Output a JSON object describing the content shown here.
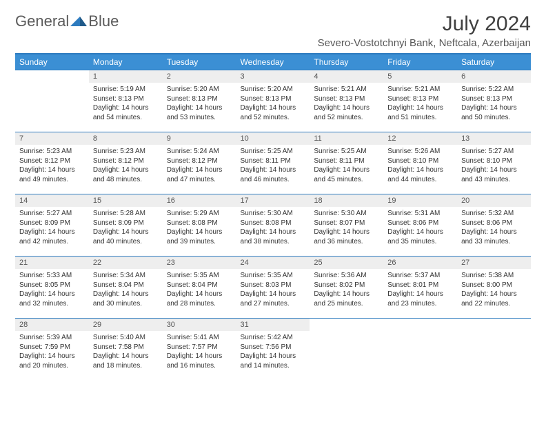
{
  "logo": {
    "word1": "General",
    "word2": "Blue"
  },
  "title": "July 2024",
  "location": "Severo-Vostotchnyi Bank, Neftcala, Azerbaijan",
  "colors": {
    "header_bg": "#3b8fd4",
    "header_border": "#2d7bbf",
    "daynum_bg": "#eeeeee",
    "text": "#333333",
    "logo_blue": "#2d7bbf"
  },
  "fonts": {
    "title_size": 30,
    "location_size": 15,
    "header_size": 12,
    "daynum_size": 11,
    "body_size": 10
  },
  "day_labels": [
    "Sunday",
    "Monday",
    "Tuesday",
    "Wednesday",
    "Thursday",
    "Friday",
    "Saturday"
  ],
  "weeks": [
    [
      {
        "n": "",
        "sunrise": "",
        "sunset": "",
        "daylight": "",
        "empty": true
      },
      {
        "n": "1",
        "sunrise": "Sunrise: 5:19 AM",
        "sunset": "Sunset: 8:13 PM",
        "daylight": "Daylight: 14 hours and 54 minutes."
      },
      {
        "n": "2",
        "sunrise": "Sunrise: 5:20 AM",
        "sunset": "Sunset: 8:13 PM",
        "daylight": "Daylight: 14 hours and 53 minutes."
      },
      {
        "n": "3",
        "sunrise": "Sunrise: 5:20 AM",
        "sunset": "Sunset: 8:13 PM",
        "daylight": "Daylight: 14 hours and 52 minutes."
      },
      {
        "n": "4",
        "sunrise": "Sunrise: 5:21 AM",
        "sunset": "Sunset: 8:13 PM",
        "daylight": "Daylight: 14 hours and 52 minutes."
      },
      {
        "n": "5",
        "sunrise": "Sunrise: 5:21 AM",
        "sunset": "Sunset: 8:13 PM",
        "daylight": "Daylight: 14 hours and 51 minutes."
      },
      {
        "n": "6",
        "sunrise": "Sunrise: 5:22 AM",
        "sunset": "Sunset: 8:13 PM",
        "daylight": "Daylight: 14 hours and 50 minutes."
      }
    ],
    [
      {
        "n": "7",
        "sunrise": "Sunrise: 5:23 AM",
        "sunset": "Sunset: 8:12 PM",
        "daylight": "Daylight: 14 hours and 49 minutes."
      },
      {
        "n": "8",
        "sunrise": "Sunrise: 5:23 AM",
        "sunset": "Sunset: 8:12 PM",
        "daylight": "Daylight: 14 hours and 48 minutes."
      },
      {
        "n": "9",
        "sunrise": "Sunrise: 5:24 AM",
        "sunset": "Sunset: 8:12 PM",
        "daylight": "Daylight: 14 hours and 47 minutes."
      },
      {
        "n": "10",
        "sunrise": "Sunrise: 5:25 AM",
        "sunset": "Sunset: 8:11 PM",
        "daylight": "Daylight: 14 hours and 46 minutes."
      },
      {
        "n": "11",
        "sunrise": "Sunrise: 5:25 AM",
        "sunset": "Sunset: 8:11 PM",
        "daylight": "Daylight: 14 hours and 45 minutes."
      },
      {
        "n": "12",
        "sunrise": "Sunrise: 5:26 AM",
        "sunset": "Sunset: 8:10 PM",
        "daylight": "Daylight: 14 hours and 44 minutes."
      },
      {
        "n": "13",
        "sunrise": "Sunrise: 5:27 AM",
        "sunset": "Sunset: 8:10 PM",
        "daylight": "Daylight: 14 hours and 43 minutes."
      }
    ],
    [
      {
        "n": "14",
        "sunrise": "Sunrise: 5:27 AM",
        "sunset": "Sunset: 8:09 PM",
        "daylight": "Daylight: 14 hours and 42 minutes."
      },
      {
        "n": "15",
        "sunrise": "Sunrise: 5:28 AM",
        "sunset": "Sunset: 8:09 PM",
        "daylight": "Daylight: 14 hours and 40 minutes."
      },
      {
        "n": "16",
        "sunrise": "Sunrise: 5:29 AM",
        "sunset": "Sunset: 8:08 PM",
        "daylight": "Daylight: 14 hours and 39 minutes."
      },
      {
        "n": "17",
        "sunrise": "Sunrise: 5:30 AM",
        "sunset": "Sunset: 8:08 PM",
        "daylight": "Daylight: 14 hours and 38 minutes."
      },
      {
        "n": "18",
        "sunrise": "Sunrise: 5:30 AM",
        "sunset": "Sunset: 8:07 PM",
        "daylight": "Daylight: 14 hours and 36 minutes."
      },
      {
        "n": "19",
        "sunrise": "Sunrise: 5:31 AM",
        "sunset": "Sunset: 8:06 PM",
        "daylight": "Daylight: 14 hours and 35 minutes."
      },
      {
        "n": "20",
        "sunrise": "Sunrise: 5:32 AM",
        "sunset": "Sunset: 8:06 PM",
        "daylight": "Daylight: 14 hours and 33 minutes."
      }
    ],
    [
      {
        "n": "21",
        "sunrise": "Sunrise: 5:33 AM",
        "sunset": "Sunset: 8:05 PM",
        "daylight": "Daylight: 14 hours and 32 minutes."
      },
      {
        "n": "22",
        "sunrise": "Sunrise: 5:34 AM",
        "sunset": "Sunset: 8:04 PM",
        "daylight": "Daylight: 14 hours and 30 minutes."
      },
      {
        "n": "23",
        "sunrise": "Sunrise: 5:35 AM",
        "sunset": "Sunset: 8:04 PM",
        "daylight": "Daylight: 14 hours and 28 minutes."
      },
      {
        "n": "24",
        "sunrise": "Sunrise: 5:35 AM",
        "sunset": "Sunset: 8:03 PM",
        "daylight": "Daylight: 14 hours and 27 minutes."
      },
      {
        "n": "25",
        "sunrise": "Sunrise: 5:36 AM",
        "sunset": "Sunset: 8:02 PM",
        "daylight": "Daylight: 14 hours and 25 minutes."
      },
      {
        "n": "26",
        "sunrise": "Sunrise: 5:37 AM",
        "sunset": "Sunset: 8:01 PM",
        "daylight": "Daylight: 14 hours and 23 minutes."
      },
      {
        "n": "27",
        "sunrise": "Sunrise: 5:38 AM",
        "sunset": "Sunset: 8:00 PM",
        "daylight": "Daylight: 14 hours and 22 minutes."
      }
    ],
    [
      {
        "n": "28",
        "sunrise": "Sunrise: 5:39 AM",
        "sunset": "Sunset: 7:59 PM",
        "daylight": "Daylight: 14 hours and 20 minutes."
      },
      {
        "n": "29",
        "sunrise": "Sunrise: 5:40 AM",
        "sunset": "Sunset: 7:58 PM",
        "daylight": "Daylight: 14 hours and 18 minutes."
      },
      {
        "n": "30",
        "sunrise": "Sunrise: 5:41 AM",
        "sunset": "Sunset: 7:57 PM",
        "daylight": "Daylight: 14 hours and 16 minutes."
      },
      {
        "n": "31",
        "sunrise": "Sunrise: 5:42 AM",
        "sunset": "Sunset: 7:56 PM",
        "daylight": "Daylight: 14 hours and 14 minutes."
      },
      {
        "n": "",
        "sunrise": "",
        "sunset": "",
        "daylight": "",
        "empty": true
      },
      {
        "n": "",
        "sunrise": "",
        "sunset": "",
        "daylight": "",
        "empty": true
      },
      {
        "n": "",
        "sunrise": "",
        "sunset": "",
        "daylight": "",
        "empty": true
      }
    ]
  ]
}
